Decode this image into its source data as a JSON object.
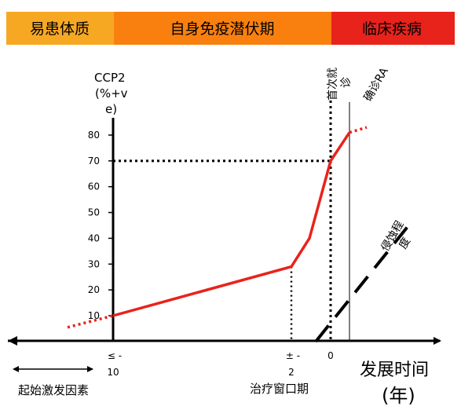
{
  "phases": [
    {
      "label": "易患体质",
      "color": "#F7A823"
    },
    {
      "label": "自身免疫潜伏期",
      "color": "#F9800F"
    },
    {
      "label": "临床疾病",
      "color": "#E8231C"
    }
  ],
  "chart_data": {
    "type": "line",
    "title": "",
    "ylabel": "CCP2 (%+ve)",
    "ylabel_lines": [
      "CCP2",
      "(%+v",
      "e)"
    ],
    "xlabel_lines": [
      "发展时间",
      "(年)"
    ],
    "ylim": [
      0,
      85
    ],
    "xlim": [
      -12,
      5.5
    ],
    "y_ticks": [
      10,
      20,
      30,
      40,
      50,
      60,
      70,
      80
    ],
    "x_ticks": [
      {
        "x": -10,
        "top": "≤ -",
        "bottom": "10"
      },
      {
        "x": -2,
        "top": "± -",
        "bottom": "2"
      },
      {
        "x": 0,
        "top": "",
        "bottom": "0"
      }
    ],
    "series": [
      {
        "color": "#E8231C",
        "points": [
          [
            -10,
            10
          ],
          [
            -2,
            29
          ],
          [
            -1,
            40
          ],
          [
            0,
            70
          ],
          [
            1,
            81
          ]
        ],
        "extension_before": [
          [
            -12,
            5.5
          ],
          [
            -10,
            10
          ]
        ],
        "extension_after": [
          [
            1,
            81
          ],
          [
            1.8,
            83
          ]
        ]
      }
    ],
    "erosion_line": {
      "label_lines": [
        "侵蚀程",
        "度"
      ],
      "points": [
        [
          -0.7,
          0
        ],
        [
          3.8,
          46
        ]
      ]
    },
    "markers": {
      "first_visit_label_lines": [
        "首次就",
        "诊"
      ],
      "ra_diagnosis_label": "确诊RA",
      "first_visit_x": 0,
      "ra_diagnosis_x": 1,
      "window_x": -2
    },
    "reference_line_y": 70,
    "treatment_window_label": "治疗窗口期",
    "initiating_factor_label": "起始激发因素"
  }
}
